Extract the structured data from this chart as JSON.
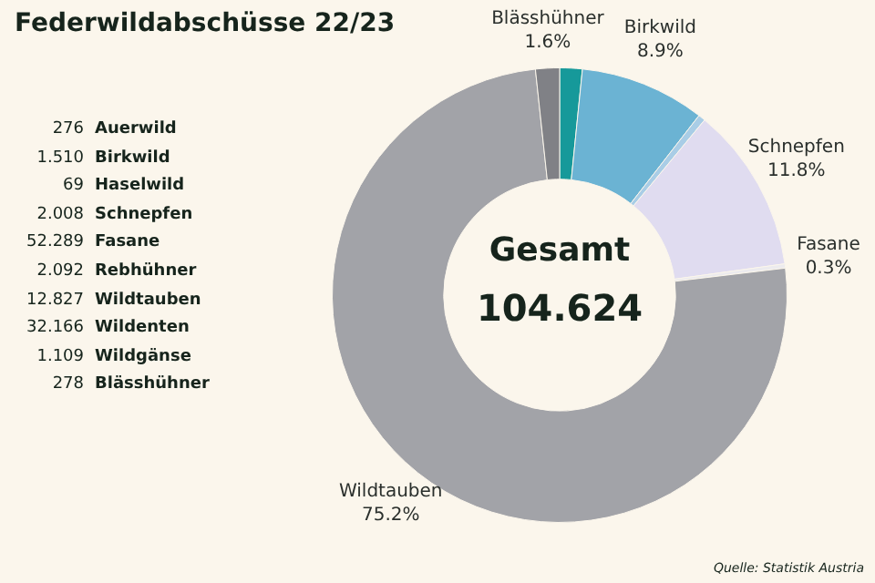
{
  "chart_data": {
    "type": "donut",
    "title": "Federwildabschüsse 22/23",
    "categories": [
      "Blässhühner",
      "Birkwild",
      null,
      "Schnepfen",
      "Fasane",
      "Wildtauben",
      null
    ],
    "values": [
      1.6,
      8.9,
      0.5,
      11.8,
      0.3,
      75.2,
      1.7
    ],
    "colors": [
      "#16999a",
      "#6bb3d3",
      "#a9cde6",
      "#e0dcf0",
      "#ecebee",
      "#a2a3a8",
      "#808186"
    ],
    "value_labels": [
      "1.6%",
      "8.9%",
      null,
      "11.8%",
      "0.3%",
      "75.2%",
      null
    ],
    "annotations": [
      "Gesamt",
      "104.624",
      "276 Auerwild",
      "1.510 Birkwild",
      "69 Haselwild",
      "2.008 Schnepfen",
      "52.289 Fasane",
      "2.092 Rebhühner",
      "12.827 Wildtauben",
      "32.166 Wildenten",
      "1.109 Wildgänse",
      "278 Blässhühner",
      "Quelle: Statistik Austria"
    ],
    "legend": false
  }
}
